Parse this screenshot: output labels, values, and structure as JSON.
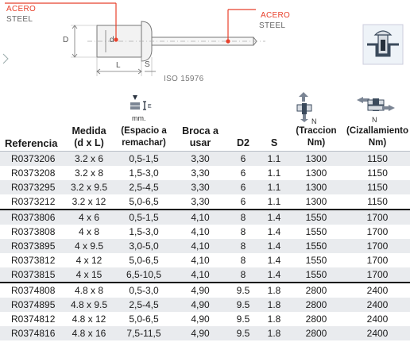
{
  "diagram": {
    "left_label": {
      "line1": "ACERO",
      "line2": "STEEL"
    },
    "right_label": {
      "line1": "ACERO",
      "line2": "STEEL"
    },
    "dim_D": "D",
    "dim_d": "d",
    "dim_L": "L",
    "dim_S": "S",
    "standard": "ISO 15976",
    "accent_color": "#e8412c"
  },
  "column_icons": {
    "medida_space_unit": "mm."
  },
  "table": {
    "headers": {
      "referencia": "Referencia",
      "medida": [
        "Medida",
        "(d x L)"
      ],
      "espacio": [
        "(Espacio a",
        "remachar)"
      ],
      "broca": [
        "Broca a",
        "usar"
      ],
      "d2": "D2",
      "s": "S",
      "traccion": [
        "(Traccion",
        "Nm)"
      ],
      "cizallamiento": [
        "(Cizallamiento",
        "Nm)"
      ]
    },
    "icon_labels": {
      "traccion": "N",
      "cizallamiento": "N"
    },
    "rows": [
      {
        "ref": "R0373206",
        "medida": "3.2 x 6",
        "espacio": "0,5-1,5",
        "broca": "3,30",
        "d2": "6",
        "s": "1.1",
        "traccion": "1300",
        "ciz": "1150"
      },
      {
        "ref": "R0373208",
        "medida": "3.2 x 8",
        "espacio": "1,5-3,0",
        "broca": "3,30",
        "d2": "6",
        "s": "1.1",
        "traccion": "1300",
        "ciz": "1150"
      },
      {
        "ref": "R0373295",
        "medida": "3.2 x 9.5",
        "espacio": "2,5-4,5",
        "broca": "3,30",
        "d2": "6",
        "s": "1.1",
        "traccion": "1300",
        "ciz": "1150"
      },
      {
        "ref": "R0373212",
        "medida": "3.2 x 12",
        "espacio": "5,0-6,5",
        "broca": "3,30",
        "d2": "6",
        "s": "1.1",
        "traccion": "1300",
        "ciz": "1150"
      },
      {
        "ref": "R0373806",
        "medida": "4 x 6",
        "espacio": "0,5-1,5",
        "broca": "4,10",
        "d2": "8",
        "s": "1.4",
        "traccion": "1550",
        "ciz": "1700"
      },
      {
        "ref": "R0373808",
        "medida": "4 x 8",
        "espacio": "1,5-3,0",
        "broca": "4,10",
        "d2": "8",
        "s": "1.4",
        "traccion": "1550",
        "ciz": "1700"
      },
      {
        "ref": "R0373895",
        "medida": "4 x 9.5",
        "espacio": "3,0-5,0",
        "broca": "4,10",
        "d2": "8",
        "s": "1.4",
        "traccion": "1550",
        "ciz": "1700"
      },
      {
        "ref": "R0373812",
        "medida": "4 x 12",
        "espacio": "5,0-6,5",
        "broca": "4,10",
        "d2": "8",
        "s": "1.4",
        "traccion": "1550",
        "ciz": "1700"
      },
      {
        "ref": "R0373815",
        "medida": "4 x 15",
        "espacio": "6,5-10,5",
        "broca": "4,10",
        "d2": "8",
        "s": "1.4",
        "traccion": "1550",
        "ciz": "1700"
      },
      {
        "ref": "R0374808",
        "medida": "4.8 x 8",
        "espacio": "0,5-3,0",
        "broca": "4,90",
        "d2": "9.5",
        "s": "1.8",
        "traccion": "2800",
        "ciz": "2400"
      },
      {
        "ref": "R0374895",
        "medida": "4.8 x 9.5",
        "espacio": "2,5-4,5",
        "broca": "4,90",
        "d2": "9.5",
        "s": "1.8",
        "traccion": "2800",
        "ciz": "2400"
      },
      {
        "ref": "R0374812",
        "medida": "4.8 x 12",
        "espacio": "5,0-6,5",
        "broca": "4,90",
        "d2": "9.5",
        "s": "1.8",
        "traccion": "2800",
        "ciz": "2400"
      },
      {
        "ref": "R0374816",
        "medida": "4.8 x 16",
        "espacio": "7,5-11,5",
        "broca": "4,90",
        "d2": "9.5",
        "s": "1.8",
        "traccion": "2800",
        "ciz": "2400"
      }
    ],
    "group_starts": [
      4,
      9
    ],
    "row_shade_color": "#e9ebee"
  }
}
